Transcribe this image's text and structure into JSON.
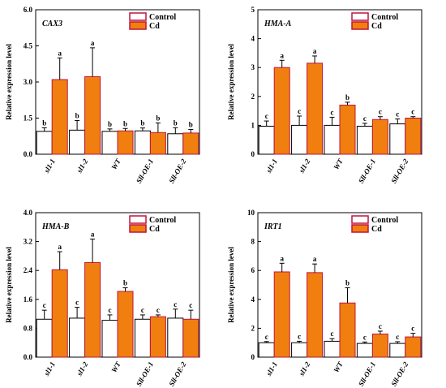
{
  "colors": {
    "control_fill": "#ffffff",
    "cd_fill": "#f07f0f",
    "cd_edge": "#c0143c",
    "axis": "#000000"
  },
  "chart_data": [
    {
      "type": "bar",
      "title": "CAX3",
      "ylabel": "Relative expression level",
      "categories": [
        "sl1-1",
        "sl1-2",
        "WT",
        "Sll-OE-1",
        "Sll-OE-2"
      ],
      "ylim": [
        0,
        6
      ],
      "yticks": [
        "0.0",
        "1.5",
        "3.0",
        "4.5",
        "6.0"
      ],
      "legend": {
        "position": "top-right",
        "entries": [
          "Control",
          "Cd"
        ]
      },
      "series": [
        {
          "name": "Control",
          "values": [
            0.95,
            1.0,
            0.95,
            0.97,
            0.85
          ],
          "errors": [
            0.15,
            0.4,
            0.1,
            0.12,
            0.25
          ],
          "labels": [
            "b",
            "b",
            "b",
            "b",
            "b"
          ]
        },
        {
          "name": "Cd",
          "values": [
            3.1,
            3.22,
            0.97,
            0.9,
            0.88
          ],
          "errors": [
            0.9,
            1.2,
            0.1,
            0.4,
            0.15
          ],
          "labels": [
            "a",
            "a",
            "b",
            "b",
            "b"
          ]
        }
      ]
    },
    {
      "type": "bar",
      "title": "HMA-A",
      "ylabel": "Relative expression level",
      "categories": [
        "sl1-1",
        "sl1-2",
        "WT",
        "Sll-OE-1",
        "Sll-OE-2"
      ],
      "ylim": [
        0,
        5
      ],
      "yticks": [
        "0",
        "1",
        "2",
        "3",
        "4",
        "5"
      ],
      "legend": {
        "position": "top-right",
        "entries": [
          "Control",
          "Cd"
        ]
      },
      "series": [
        {
          "name": "Control",
          "values": [
            0.97,
            1.0,
            1.0,
            0.97,
            1.05
          ],
          "errors": [
            0.18,
            0.32,
            0.28,
            0.1,
            0.17
          ],
          "labels": [
            "c",
            "c",
            "c",
            "c",
            "c"
          ]
        },
        {
          "name": "Cd",
          "values": [
            3.0,
            3.15,
            1.7,
            1.2,
            1.25
          ],
          "errors": [
            0.25,
            0.25,
            0.1,
            0.1,
            0.05
          ],
          "labels": [
            "a",
            "a",
            "b",
            "c",
            "c"
          ]
        }
      ]
    },
    {
      "type": "bar",
      "title": "HMA-B",
      "ylabel": "Relative expression level",
      "categories": [
        "sl1-1",
        "sl1-2",
        "WT",
        "Sll-OE-1",
        "Sll-OE-2"
      ],
      "ylim": [
        0,
        4
      ],
      "yticks": [
        "0.0",
        "0.8",
        "1.6",
        "2.4",
        "3.2",
        "4.0"
      ],
      "legend": {
        "position": "top-right",
        "entries": [
          "Control",
          "Cd"
        ]
      },
      "series": [
        {
          "name": "Control",
          "values": [
            1.05,
            1.08,
            1.02,
            1.05,
            1.08
          ],
          "errors": [
            0.25,
            0.3,
            0.15,
            0.12,
            0.25
          ],
          "labels": [
            "c",
            "c",
            "c",
            "c",
            "c"
          ]
        },
        {
          "name": "Cd",
          "values": [
            2.42,
            2.62,
            1.82,
            1.12,
            1.05
          ],
          "errors": [
            0.5,
            0.65,
            0.1,
            0.05,
            0.25
          ],
          "labels": [
            "a",
            "a",
            "b",
            "c",
            "c"
          ]
        }
      ]
    },
    {
      "type": "bar",
      "title": "IRT1",
      "ylabel": "Relative expression level",
      "categories": [
        "sl1-1",
        "sl1-2",
        "WT",
        "Sll-OE-1",
        "Sll-OE-2"
      ],
      "ylim": [
        0,
        10
      ],
      "yticks": [
        "0",
        "2",
        "4",
        "6",
        "8",
        "10"
      ],
      "legend": {
        "position": "top-right",
        "entries": [
          "Control",
          "Cd"
        ]
      },
      "series": [
        {
          "name": "Control",
          "values": [
            1.0,
            1.0,
            1.1,
            0.95,
            0.95
          ],
          "errors": [
            0.08,
            0.1,
            0.18,
            0.1,
            0.12
          ],
          "labels": [
            "c",
            "c",
            "c",
            "c",
            "c"
          ]
        },
        {
          "name": "Cd",
          "values": [
            5.9,
            5.85,
            3.75,
            1.6,
            1.4
          ],
          "errors": [
            0.6,
            0.6,
            1.05,
            0.2,
            0.25
          ],
          "labels": [
            "a",
            "a",
            "b",
            "c",
            "c"
          ]
        }
      ]
    }
  ]
}
